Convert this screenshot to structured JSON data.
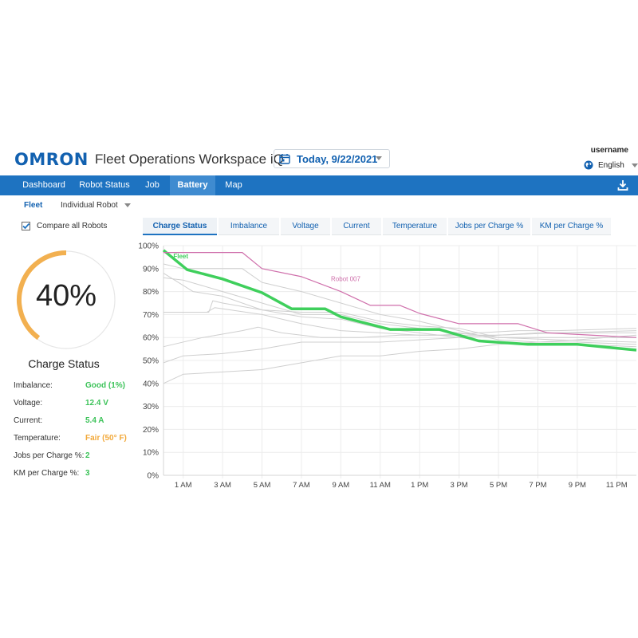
{
  "header": {
    "logo": "OMRON",
    "app_title": "Fleet Operations Workspace iQ",
    "date": "Today, 9/22/2021",
    "username": "username",
    "language": "English"
  },
  "nav": {
    "items": [
      "Dashboard",
      "Robot Status",
      "Job",
      "Battery",
      "Map"
    ],
    "active": "Battery",
    "accent": "#1e73c1"
  },
  "subtabs": {
    "fleet": "Fleet",
    "individual": "Individual Robot"
  },
  "compare_label": "Compare all Robots",
  "gauge": {
    "value_label": "40%",
    "percent": 40,
    "label": "Charge Status",
    "color": "#f2b050"
  },
  "metrics": [
    {
      "label": "Imbalance:",
      "value": "Good (1%)",
      "status": "green"
    },
    {
      "label": "Voltage:",
      "value": "12.4 V",
      "status": "green"
    },
    {
      "label": "Current:",
      "value": "5.4 A",
      "status": "green"
    },
    {
      "label": "Temperature:",
      "value": "Fair (50° F)",
      "status": "orange"
    },
    {
      "label": "Jobs per Charge %:",
      "value": "2",
      "status": "green"
    },
    {
      "label": "KM per Charge %:",
      "value": "3",
      "status": "green"
    }
  ],
  "chart_tabs": [
    "Charge Status",
    "Imbalance",
    "Voltage",
    "Current",
    "Temperature",
    "Jobs per Charge %",
    "KM per Charge %"
  ],
  "chart_data": {
    "type": "line",
    "y_ticks": [
      "100%",
      "90%",
      "80%",
      "70%",
      "60%",
      "50%",
      "40%",
      "30%",
      "20%",
      "10%",
      "0%"
    ],
    "ylim": [
      0,
      100
    ],
    "xlim": [
      0,
      24
    ],
    "x_tick_labels": [
      "1 AM",
      "3 AM",
      "5 AM",
      "7 AM",
      "9 AM",
      "11 AM",
      "1 PM",
      "3 PM",
      "5 PM",
      "7 PM",
      "9 PM",
      "11 PM"
    ],
    "x_tick_hours": [
      1,
      3,
      5,
      7,
      9,
      11,
      13,
      15,
      17,
      19,
      21,
      23
    ],
    "series": [
      {
        "name": "Fleet",
        "color": "#3fcf5c",
        "width": 3.5,
        "points": [
          [
            0,
            98
          ],
          [
            1.2,
            89.5
          ],
          [
            3,
            85.5
          ],
          [
            5,
            79.5
          ],
          [
            6.5,
            72.5
          ],
          [
            8.2,
            72.5
          ],
          [
            9,
            69
          ],
          [
            11.5,
            63.5
          ],
          [
            14,
            63.5
          ],
          [
            16,
            58.5
          ],
          [
            18.5,
            57
          ],
          [
            21,
            57
          ],
          [
            24,
            54.5
          ]
        ]
      },
      {
        "name": "Robot 007",
        "color": "#cf6fab",
        "width": 1.2,
        "points": [
          [
            0,
            97
          ],
          [
            4,
            97
          ],
          [
            5,
            90
          ],
          [
            7,
            86.5
          ],
          [
            9,
            80
          ],
          [
            10.5,
            74
          ],
          [
            12,
            74
          ],
          [
            13,
            70.5
          ],
          [
            15,
            66
          ],
          [
            18,
            66
          ],
          [
            19.5,
            62
          ],
          [
            24,
            60
          ]
        ]
      },
      {
        "name": "",
        "color": "#cfcfcf",
        "width": 1,
        "points": [
          [
            0,
            92
          ],
          [
            1,
            90
          ],
          [
            3,
            90
          ],
          [
            4,
            90
          ],
          [
            5,
            84
          ],
          [
            7,
            80
          ],
          [
            9,
            75
          ],
          [
            11,
            70
          ],
          [
            13,
            67
          ],
          [
            15,
            63
          ],
          [
            17,
            59
          ],
          [
            19,
            58
          ],
          [
            21,
            58
          ],
          [
            24,
            57
          ]
        ]
      },
      {
        "name": "",
        "color": "#cfcfcf",
        "width": 1,
        "points": [
          [
            0,
            88
          ],
          [
            1.5,
            80
          ],
          [
            3,
            78
          ],
          [
            5,
            72
          ],
          [
            7,
            69
          ],
          [
            9,
            68
          ],
          [
            11,
            64
          ],
          [
            13,
            62
          ],
          [
            15,
            60
          ],
          [
            17,
            58
          ],
          [
            19,
            57
          ],
          [
            21,
            57
          ],
          [
            24,
            56
          ]
        ]
      },
      {
        "name": "",
        "color": "#cfcfcf",
        "width": 1,
        "points": [
          [
            0,
            86
          ],
          [
            1,
            85
          ],
          [
            3,
            80
          ],
          [
            5,
            75
          ],
          [
            7,
            70
          ],
          [
            9,
            70
          ],
          [
            11,
            66
          ],
          [
            13,
            64
          ],
          [
            15,
            62
          ],
          [
            17,
            60
          ],
          [
            20,
            59
          ],
          [
            24,
            58
          ]
        ]
      },
      {
        "name": "",
        "color": "#cfcfcf",
        "width": 1,
        "points": [
          [
            0,
            71
          ],
          [
            2,
            71
          ],
          [
            2.3,
            71
          ],
          [
            2.5,
            76
          ],
          [
            3,
            75
          ],
          [
            5,
            72
          ],
          [
            7,
            71
          ],
          [
            9,
            71
          ],
          [
            11,
            67
          ],
          [
            13,
            65
          ],
          [
            15,
            64
          ],
          [
            17,
            60
          ],
          [
            20,
            60
          ],
          [
            24,
            60
          ]
        ]
      },
      {
        "name": "",
        "color": "#cfcfcf",
        "width": 1,
        "points": [
          [
            0,
            71
          ],
          [
            2.2,
            71
          ],
          [
            2.6,
            73
          ],
          [
            5,
            70
          ],
          [
            7,
            66
          ],
          [
            9,
            63
          ],
          [
            11,
            62
          ],
          [
            13,
            61
          ],
          [
            15,
            61
          ],
          [
            17,
            61
          ],
          [
            20,
            62
          ],
          [
            24,
            63
          ]
        ]
      },
      {
        "name": "",
        "color": "#cfcfcf",
        "width": 1,
        "points": [
          [
            0,
            56
          ],
          [
            2,
            60
          ],
          [
            4,
            63
          ],
          [
            4.8,
            64.5
          ],
          [
            6,
            62
          ],
          [
            8,
            60
          ],
          [
            10,
            60
          ],
          [
            12,
            61
          ],
          [
            14,
            61
          ],
          [
            16,
            62
          ],
          [
            18,
            63
          ],
          [
            20,
            63
          ],
          [
            24,
            64
          ]
        ]
      },
      {
        "name": "",
        "color": "#cfcfcf",
        "width": 1,
        "points": [
          [
            0,
            49
          ],
          [
            1,
            52
          ],
          [
            3,
            53
          ],
          [
            5,
            55
          ],
          [
            7,
            58
          ],
          [
            9,
            58
          ],
          [
            11,
            58
          ],
          [
            13,
            59
          ],
          [
            15,
            60
          ],
          [
            17,
            61
          ],
          [
            19,
            62
          ],
          [
            21,
            62
          ],
          [
            24,
            62
          ]
        ]
      },
      {
        "name": "",
        "color": "#cfcfcf",
        "width": 1,
        "points": [
          [
            0,
            40
          ],
          [
            1,
            44
          ],
          [
            3,
            45
          ],
          [
            5,
            46
          ],
          [
            7,
            49
          ],
          [
            9,
            52
          ],
          [
            11,
            52
          ],
          [
            13,
            54
          ],
          [
            15,
            55
          ],
          [
            17,
            57
          ],
          [
            19,
            58
          ],
          [
            21,
            59
          ],
          [
            24,
            61
          ]
        ]
      }
    ]
  }
}
